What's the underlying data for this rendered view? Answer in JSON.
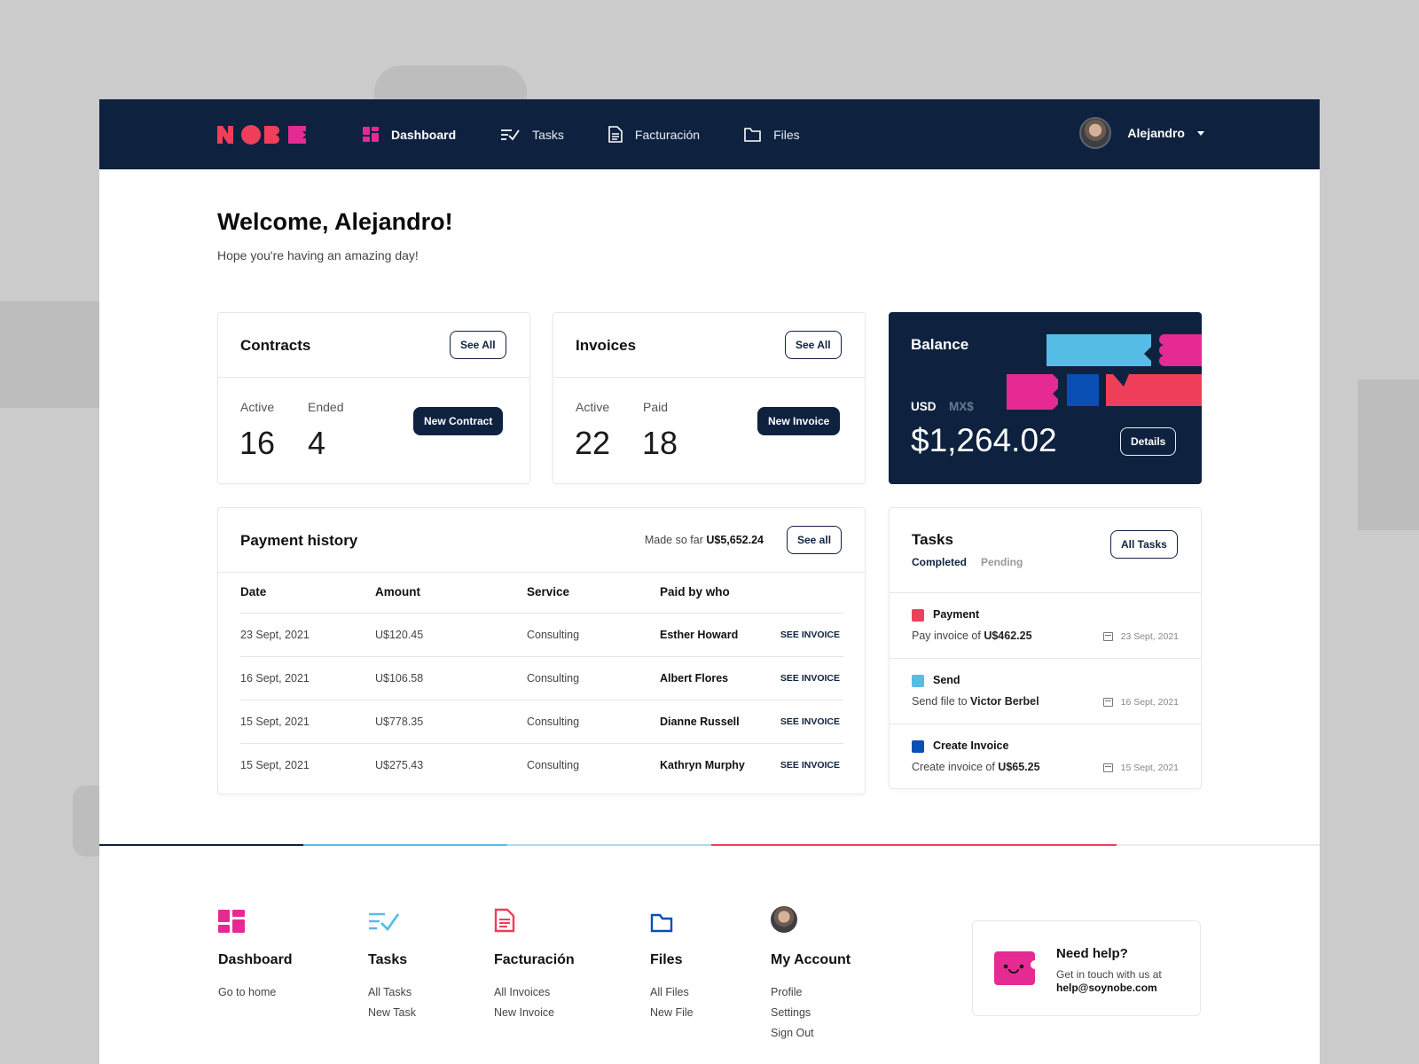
{
  "brand": {
    "logo_text": "NOBE"
  },
  "nav": {
    "items": [
      {
        "label": "Dashboard",
        "icon": "dashboard-icon",
        "active": true
      },
      {
        "label": "Tasks",
        "icon": "tasks-icon",
        "active": false
      },
      {
        "label": "Facturación",
        "icon": "document-icon",
        "active": false
      },
      {
        "label": "Files",
        "icon": "folder-icon",
        "active": false
      }
    ],
    "user": {
      "name": "Alejandro"
    }
  },
  "header": {
    "welcome": "Welcome, Alejandro!",
    "subtitle": "Hope you're having an amazing day!"
  },
  "contracts": {
    "title": "Contracts",
    "see_all": "See All",
    "active_label": "Active",
    "active_value": "16",
    "ended_label": "Ended",
    "ended_value": "4",
    "action": "New Contract"
  },
  "invoices": {
    "title": "Invoices",
    "see_all": "See All",
    "active_label": "Active",
    "active_value": "22",
    "paid_label": "Paid",
    "paid_value": "18",
    "action": "New Invoice"
  },
  "balance": {
    "title": "Balance",
    "currency_selected": "USD",
    "currency_other": "MX$",
    "amount": "$1,264.02",
    "details": "Details"
  },
  "payment_history": {
    "title": "Payment history",
    "made_so_far_label": "Made so far",
    "made_so_far_value": "U$5,652.24",
    "see_all": "See all",
    "columns": [
      "Date",
      "Amount",
      "Service",
      "Paid by who"
    ],
    "rows": [
      {
        "date": "23 Sept, 2021",
        "amount": "U$120.45",
        "service": "Consulting",
        "who": "Esther Howard",
        "link": "SEE INVOICE"
      },
      {
        "date": "16 Sept, 2021",
        "amount": "U$106.58",
        "service": "Consulting",
        "who": "Albert Flores",
        "link": "SEE INVOICE"
      },
      {
        "date": "15 Sept, 2021",
        "amount": "U$778.35",
        "service": "Consulting",
        "who": "Dianne Russell",
        "link": "SEE INVOICE"
      },
      {
        "date": "15 Sept, 2021",
        "amount": "U$275.43",
        "service": "Consulting",
        "who": "Kathryn Murphy",
        "link": "SEE INVOICE"
      }
    ]
  },
  "tasks": {
    "title": "Tasks",
    "all_tasks": "All Tasks",
    "tab_completed": "Completed",
    "tab_pending": "Pending",
    "items": [
      {
        "name": "Payment",
        "color": "#ef3f5a",
        "desc_prefix": "Pay invoice of",
        "desc_value": "U$462.25",
        "date": "23 Sept, 2021"
      },
      {
        "name": "Send",
        "color": "#55bde6",
        "desc_prefix": "Send file to",
        "desc_value": "Victor Berbel",
        "date": "16 Sept, 2021"
      },
      {
        "name": "Create Invoice",
        "color": "#0a4fb3",
        "desc_prefix": "Create invoice of",
        "desc_value": "U$65.25",
        "date": "15 Sept, 2021"
      }
    ]
  },
  "footer": {
    "columns": [
      {
        "title": "Dashboard",
        "icon": "dashboard-icon",
        "links": [
          "Go to home"
        ]
      },
      {
        "title": "Tasks",
        "icon": "tasks-icon",
        "links": [
          "All Tasks",
          "New Task"
        ]
      },
      {
        "title": "Facturación",
        "icon": "document-icon",
        "links": [
          "All Invoices",
          "New Invoice"
        ]
      },
      {
        "title": "Files",
        "icon": "folder-icon",
        "links": [
          "All Files",
          "New File"
        ]
      },
      {
        "title": "My Account",
        "icon": "avatar",
        "links": [
          "Profile",
          "Settings",
          "Sign Out"
        ]
      }
    ],
    "help": {
      "title": "Need help?",
      "text": "Get in touch with us at",
      "email": "help@soynobe.com"
    }
  },
  "colors": {
    "navy": "#0e2240",
    "pink": "#e62a94",
    "red": "#ef3f5a",
    "sky": "#55bde6",
    "blue": "#0a4fb3"
  }
}
